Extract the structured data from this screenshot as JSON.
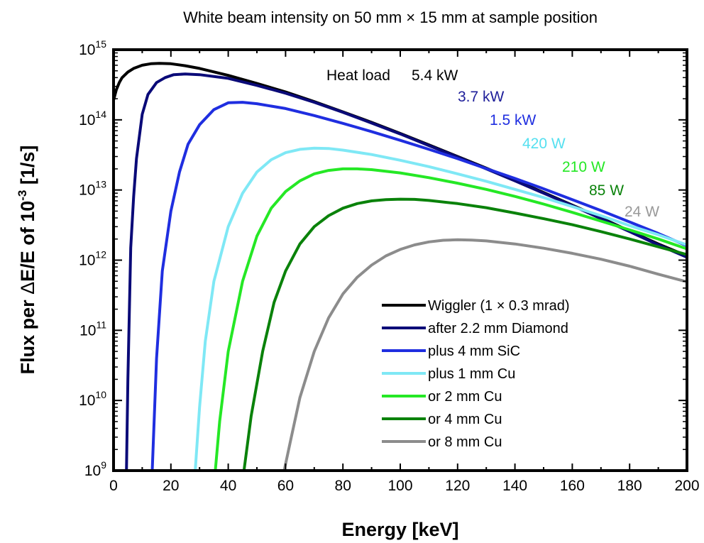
{
  "chart_data": {
    "type": "line",
    "title": "White beam intensity on 50 mm × 15 mm at sample position",
    "xlabel": "Energy [keV]",
    "ylabel_parts": {
      "prefix": "Flux per ",
      "delta": "Δ",
      "middle": "E/E of 10",
      "exponent": "-3",
      "suffix": " [1/s]"
    },
    "xlim": [
      0,
      200
    ],
    "ylim": [
      1000000000.0,
      1000000000000000.0
    ],
    "yscale": "log",
    "grid": false,
    "legend_position": "bottom-right",
    "x_ticks": [
      "0",
      "20",
      "40",
      "60",
      "80",
      "100",
      "120",
      "140",
      "160",
      "180",
      "200"
    ],
    "y_ticks": [
      {
        "base": "10",
        "exp": "9"
      },
      {
        "base": "10",
        "exp": "10"
      },
      {
        "base": "10",
        "exp": "11"
      },
      {
        "base": "10",
        "exp": "12"
      },
      {
        "base": "10",
        "exp": "13"
      },
      {
        "base": "10",
        "exp": "14"
      },
      {
        "base": "10",
        "exp": "15"
      }
    ],
    "annotations": {
      "heat_load_label": "Heat load",
      "powers": [
        "5.4 kW",
        "3.7 kW",
        "1.5 kW",
        "420 W",
        "210 W",
        "85 W",
        "24 W"
      ]
    },
    "series": [
      {
        "name": "Wiggler (1 × 0.3 mrad)",
        "color": "#000000",
        "points": [
          [
            0,
            190000000000000.0
          ],
          [
            1,
            270000000000000.0
          ],
          [
            2,
            340000000000000.0
          ],
          [
            3,
            400000000000000.0
          ],
          [
            5,
            480000000000000.0
          ],
          [
            7,
            540000000000000.0
          ],
          [
            10,
            600000000000000.0
          ],
          [
            13,
            630000000000000.0
          ],
          [
            16,
            640000000000000.0
          ],
          [
            20,
            630000000000000.0
          ],
          [
            25,
            590000000000000.0
          ],
          [
            30,
            540000000000000.0
          ],
          [
            40,
            430000000000000.0
          ],
          [
            50,
            330000000000000.0
          ],
          [
            60,
            250000000000000.0
          ],
          [
            70,
            182000000000000.0
          ],
          [
            80,
            130000000000000.0
          ],
          [
            90,
            92000000000000.0
          ],
          [
            100,
            64000000000000.0
          ],
          [
            110,
            44000000000000.0
          ],
          [
            120,
            30000000000000.0
          ],
          [
            130,
            20500000000000.0
          ],
          [
            140,
            13800000000000.0
          ],
          [
            150,
            9200000000000.0
          ],
          [
            160,
            6100000000000.0
          ],
          [
            170,
            4000000000000.0
          ],
          [
            180,
            2600000000000.0
          ],
          [
            190,
            1700000000000.0
          ],
          [
            200,
            1150000000000.0
          ]
        ]
      },
      {
        "name": "after 2.2 mm Diamond",
        "color": "#0a0a78",
        "points": [
          [
            4.5,
            1000000000.0
          ],
          [
            5,
            20000000000.0
          ],
          [
            6,
            1500000000000.0
          ],
          [
            7,
            8000000000000.0
          ],
          [
            8,
            28000000000000.0
          ],
          [
            10,
            120000000000000.0
          ],
          [
            12,
            230000000000000.0
          ],
          [
            15,
            340000000000000.0
          ],
          [
            18,
            400000000000000.0
          ],
          [
            21,
            440000000000000.0
          ],
          [
            25,
            450000000000000.0
          ],
          [
            30,
            440000000000000.0
          ],
          [
            40,
            390000000000000.0
          ],
          [
            50,
            310000000000000.0
          ],
          [
            60,
            240000000000000.0
          ],
          [
            70,
            178000000000000.0
          ],
          [
            80,
            128000000000000.0
          ],
          [
            90,
            90000000000000.0
          ],
          [
            100,
            63000000000000.0
          ],
          [
            110,
            43000000000000.0
          ],
          [
            120,
            29500000000000.0
          ],
          [
            130,
            20000000000000.0
          ],
          [
            140,
            13500000000000.0
          ],
          [
            150,
            9000000000000.0
          ],
          [
            160,
            6000000000000.0
          ],
          [
            170,
            3900000000000.0
          ],
          [
            180,
            2550000000000.0
          ],
          [
            190,
            1650000000000.0
          ],
          [
            200,
            1100000000000.0
          ]
        ]
      },
      {
        "name": "plus 4 mm SiC",
        "color": "#1f2ee0",
        "points": [
          [
            13.5,
            1000000000.0
          ],
          [
            15,
            40000000000.0
          ],
          [
            17,
            700000000000.0
          ],
          [
            20,
            5000000000000.0
          ],
          [
            23,
            18000000000000.0
          ],
          [
            26,
            45000000000000.0
          ],
          [
            30,
            85000000000000.0
          ],
          [
            35,
            140000000000000.0
          ],
          [
            40,
            175000000000000.0
          ],
          [
            45,
            178000000000000.0
          ],
          [
            50,
            170000000000000.0
          ],
          [
            60,
            145000000000000.0
          ],
          [
            70,
            115000000000000.0
          ],
          [
            80,
            89000000000000.0
          ],
          [
            90,
            68000000000000.0
          ],
          [
            100,
            51000000000000.0
          ],
          [
            110,
            38000000000000.0
          ],
          [
            120,
            28000000000000.0
          ],
          [
            130,
            20200000000000.0
          ],
          [
            140,
            14600000000000.0
          ],
          [
            150,
            10400000000000.0
          ],
          [
            160,
            7300000000000.0
          ],
          [
            170,
            5100000000000.0
          ],
          [
            180,
            3500000000000.0
          ],
          [
            190,
            2400000000000.0
          ],
          [
            200,
            1600000000000.0
          ]
        ]
      },
      {
        "name": "plus 1 mm Cu",
        "color": "#7fe8f5",
        "points": [
          [
            28.5,
            1000000000.0
          ],
          [
            30,
            8000000000.0
          ],
          [
            32,
            70000000000.0
          ],
          [
            35,
            500000000000.0
          ],
          [
            40,
            3000000000000.0
          ],
          [
            45,
            9000000000000.0
          ],
          [
            50,
            18000000000000.0
          ],
          [
            55,
            27000000000000.0
          ],
          [
            60,
            34000000000000.0
          ],
          [
            65,
            38000000000000.0
          ],
          [
            70,
            39500000000000.0
          ],
          [
            75,
            39000000000000.0
          ],
          [
            80,
            37000000000000.0
          ],
          [
            90,
            32000000000000.0
          ],
          [
            100,
            26500000000000.0
          ],
          [
            110,
            21500000000000.0
          ],
          [
            120,
            17000000000000.0
          ],
          [
            130,
            13300000000000.0
          ],
          [
            140,
            10200000000000.0
          ],
          [
            150,
            7800000000000.0
          ],
          [
            160,
            5800000000000.0
          ],
          [
            170,
            4300000000000.0
          ],
          [
            180,
            3100000000000.0
          ],
          [
            190,
            2300000000000.0
          ],
          [
            200,
            1650000000000.0
          ]
        ]
      },
      {
        "name": "or 2 mm Cu",
        "color": "#25e825",
        "points": [
          [
            35.5,
            1000000000.0
          ],
          [
            37,
            5000000000.0
          ],
          [
            40,
            50000000000.0
          ],
          [
            45,
            500000000000.0
          ],
          [
            50,
            2200000000000.0
          ],
          [
            55,
            5500000000000.0
          ],
          [
            60,
            9500000000000.0
          ],
          [
            65,
            13500000000000.0
          ],
          [
            70,
            17000000000000.0
          ],
          [
            75,
            19000000000000.0
          ],
          [
            80,
            20000000000000.0
          ],
          [
            85,
            20000000000000.0
          ],
          [
            90,
            19500000000000.0
          ],
          [
            100,
            17500000000000.0
          ],
          [
            110,
            15000000000000.0
          ],
          [
            120,
            12500000000000.0
          ],
          [
            130,
            10200000000000.0
          ],
          [
            140,
            8100000000000.0
          ],
          [
            150,
            6300000000000.0
          ],
          [
            160,
            4800000000000.0
          ],
          [
            170,
            3600000000000.0
          ],
          [
            180,
            2700000000000.0
          ],
          [
            190,
            2000000000000.0
          ],
          [
            200,
            1450000000000.0
          ]
        ]
      },
      {
        "name": "or 4 mm Cu",
        "color": "#0a820a",
        "points": [
          [
            45.5,
            1000000000.0
          ],
          [
            48,
            6000000000.0
          ],
          [
            52,
            50000000000.0
          ],
          [
            56,
            250000000000.0
          ],
          [
            60,
            700000000000.0
          ],
          [
            65,
            1700000000000.0
          ],
          [
            70,
            3000000000000.0
          ],
          [
            75,
            4300000000000.0
          ],
          [
            80,
            5500000000000.0
          ],
          [
            85,
            6400000000000.0
          ],
          [
            90,
            7000000000000.0
          ],
          [
            95,
            7300000000000.0
          ],
          [
            100,
            7400000000000.0
          ],
          [
            105,
            7350000000000.0
          ],
          [
            110,
            7100000000000.0
          ],
          [
            120,
            6400000000000.0
          ],
          [
            130,
            5600000000000.0
          ],
          [
            140,
            4700000000000.0
          ],
          [
            150,
            3900000000000.0
          ],
          [
            160,
            3200000000000.0
          ],
          [
            170,
            2550000000000.0
          ],
          [
            180,
            2000000000000.0
          ],
          [
            190,
            1550000000000.0
          ],
          [
            200,
            1200000000000.0
          ]
        ]
      },
      {
        "name": "or 8 mm Cu",
        "color": "#8c8c8c",
        "points": [
          [
            59.5,
            1000000000.0
          ],
          [
            62,
            3000000000.0
          ],
          [
            65,
            11000000000.0
          ],
          [
            70,
            50000000000.0
          ],
          [
            75,
            150000000000.0
          ],
          [
            80,
            330000000000.0
          ],
          [
            85,
            570000000000.0
          ],
          [
            90,
            850000000000.0
          ],
          [
            95,
            1150000000000.0
          ],
          [
            100,
            1420000000000.0
          ],
          [
            105,
            1650000000000.0
          ],
          [
            110,
            1820000000000.0
          ],
          [
            115,
            1920000000000.0
          ],
          [
            120,
            1950000000000.0
          ],
          [
            125,
            1930000000000.0
          ],
          [
            130,
            1880000000000.0
          ],
          [
            140,
            1700000000000.0
          ],
          [
            150,
            1480000000000.0
          ],
          [
            160,
            1250000000000.0
          ],
          [
            170,
            1030000000000.0
          ],
          [
            180,
            820000000000.0
          ],
          [
            190,
            630000000000.0
          ],
          [
            200,
            490000000000.0
          ]
        ]
      }
    ]
  }
}
